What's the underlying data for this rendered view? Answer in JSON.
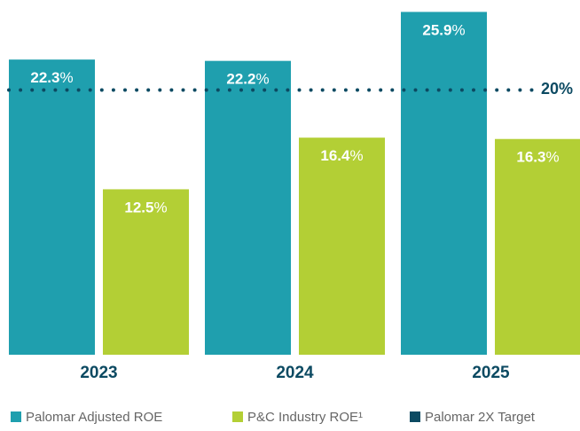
{
  "chart_data": {
    "type": "bar",
    "categories": [
      "2023",
      "2024",
      "2025"
    ],
    "series": [
      {
        "name": "Palomar Adjusted ROE",
        "color": "#1f9fae",
        "values": [
          22.3,
          22.2,
          25.9
        ]
      },
      {
        "name": "P&C Industry ROE¹",
        "color": "#b3cf35",
        "values": [
          12.5,
          16.4,
          16.3
        ]
      }
    ],
    "value_suffix": "%",
    "target": {
      "name": "Palomar 2X Target",
      "value": 20,
      "label": "20%",
      "color": "#0c4a62"
    },
    "ylim": [
      0,
      26.8
    ],
    "legend": "bottom"
  }
}
